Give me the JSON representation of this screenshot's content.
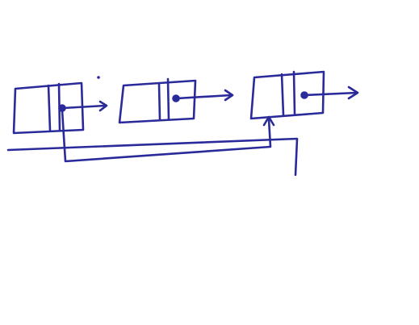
{
  "diagram": {
    "kind": "linked-list-sketch",
    "ink_color": "#2a2a9a",
    "background": "#ffffff",
    "nodes": [
      {
        "id": "node-1",
        "fields": [
          "value",
          "next"
        ]
      },
      {
        "id": "node-2",
        "fields": [
          "value",
          "next"
        ]
      },
      {
        "id": "node-3",
        "fields": [
          "value",
          "next"
        ]
      }
    ],
    "edges": [
      {
        "from": "node-1",
        "to": "node-2"
      },
      {
        "from": "node-2",
        "to": "node-3"
      },
      {
        "from": "node-3",
        "to": "out"
      },
      {
        "from": "node-1",
        "to": "node-3",
        "style": "routed-below"
      }
    ]
  }
}
